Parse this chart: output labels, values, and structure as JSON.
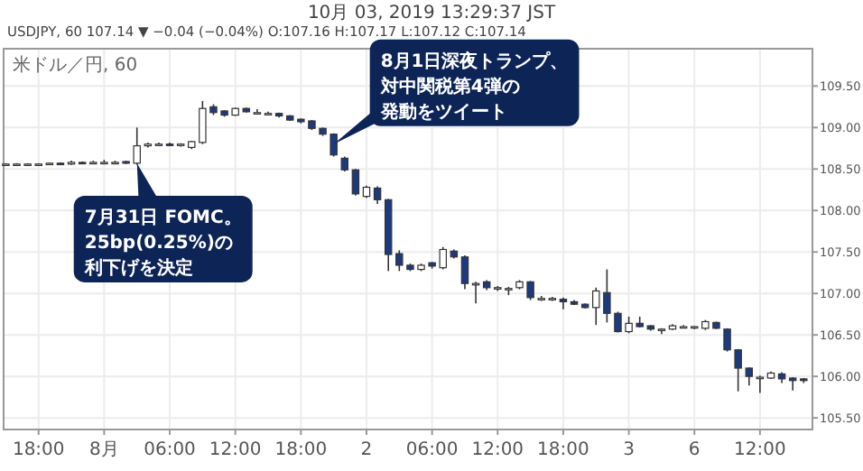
{
  "chart_data": {
    "type": "candlestick",
    "title": "10月 03, 2019 13:29:37 JST",
    "subtitle": "USDJPY, 60 107.14 ▼ −0.04 (−0.04%) O:107.16 H:107.17 L:107.12 C:107.14",
    "legend_title": "米ドル／円, 60",
    "x": [
      "2019-07-31T15:00",
      "2019-07-31T16:00",
      "2019-07-31T17:00",
      "2019-07-31T18:00",
      "2019-07-31T19:00",
      "2019-07-31T20:00",
      "2019-07-31T21:00",
      "2019-07-31T22:00",
      "2019-07-31T23:00",
      "2019-08-01T00:00",
      "2019-08-01T01:00",
      "2019-08-01T02:00",
      "2019-08-01T03:00",
      "2019-08-01T04:00",
      "2019-08-01T05:00",
      "2019-08-01T06:00",
      "2019-08-01T07:00",
      "2019-08-01T08:00",
      "2019-08-01T09:00",
      "2019-08-01T10:00",
      "2019-08-01T11:00",
      "2019-08-01T12:00",
      "2019-08-01T13:00",
      "2019-08-01T14:00",
      "2019-08-01T15:00",
      "2019-08-01T16:00",
      "2019-08-01T17:00",
      "2019-08-01T18:00",
      "2019-08-01T19:00",
      "2019-08-01T20:00",
      "2019-08-01T21:00",
      "2019-08-01T22:00",
      "2019-08-01T23:00",
      "2019-08-02T00:00",
      "2019-08-02T01:00",
      "2019-08-02T02:00",
      "2019-08-02T03:00",
      "2019-08-02T04:00",
      "2019-08-02T05:00",
      "2019-08-02T06:00",
      "2019-08-02T07:00",
      "2019-08-02T08:00",
      "2019-08-02T09:00",
      "2019-08-02T10:00",
      "2019-08-02T11:00",
      "2019-08-02T12:00",
      "2019-08-02T13:00",
      "2019-08-02T14:00",
      "2019-08-02T15:00",
      "2019-08-02T16:00",
      "2019-08-02T17:00",
      "2019-08-02T18:00",
      "2019-08-02T19:00",
      "2019-08-02T20:00",
      "2019-08-02T21:00",
      "2019-08-02T22:00",
      "2019-08-02T23:00",
      "2019-08-03T00:00",
      "2019-08-03T01:00",
      "2019-08-03T02:00",
      "2019-08-03T03:00",
      "2019-08-03T04:00",
      "2019-08-03T05:00",
      "2019-08-03T06:00",
      "2019-08-03T07:00",
      "2019-08-03T08:00",
      "2019-08-03T09:00",
      "2019-08-03T10:00",
      "2019-08-03T11:00",
      "2019-08-03T12:00",
      "2019-08-03T13:00",
      "2019-08-03T14:00",
      "2019-08-03T15:00",
      "2019-08-03T16:00"
    ],
    "ohlc": [
      [
        108.56,
        108.57,
        108.55,
        108.56
      ],
      [
        108.56,
        108.57,
        108.55,
        108.56
      ],
      [
        108.56,
        108.57,
        108.55,
        108.56
      ],
      [
        108.56,
        108.57,
        108.55,
        108.56
      ],
      [
        108.56,
        108.58,
        108.55,
        108.57
      ],
      [
        108.57,
        108.58,
        108.56,
        108.56
      ],
      [
        108.56,
        108.6,
        108.55,
        108.58
      ],
      [
        108.58,
        108.59,
        108.56,
        108.57
      ],
      [
        108.57,
        108.6,
        108.56,
        108.58
      ],
      [
        108.58,
        108.61,
        108.57,
        108.58
      ],
      [
        108.58,
        108.6,
        108.56,
        108.58
      ],
      [
        108.59,
        108.6,
        108.56,
        108.57
      ],
      [
        108.57,
        109.0,
        108.55,
        108.78
      ],
      [
        108.78,
        108.82,
        108.76,
        108.8
      ],
      [
        108.8,
        108.82,
        108.78,
        108.8
      ],
      [
        108.8,
        108.82,
        108.78,
        108.79
      ],
      [
        108.79,
        108.81,
        108.77,
        108.8
      ],
      [
        108.76,
        108.84,
        108.74,
        108.83
      ],
      [
        108.82,
        109.32,
        108.8,
        109.23
      ],
      [
        109.25,
        109.28,
        109.15,
        109.18
      ],
      [
        109.2,
        109.21,
        109.13,
        109.15
      ],
      [
        109.15,
        109.24,
        109.14,
        109.23
      ],
      [
        109.23,
        109.24,
        109.18,
        109.19
      ],
      [
        109.18,
        109.22,
        109.16,
        109.18
      ],
      [
        109.17,
        109.19,
        109.15,
        109.17
      ],
      [
        109.17,
        109.18,
        109.12,
        109.14
      ],
      [
        109.14,
        109.15,
        109.08,
        109.09
      ],
      [
        109.1,
        109.11,
        109.05,
        109.07
      ],
      [
        109.08,
        109.09,
        108.97,
        108.99
      ],
      [
        108.99,
        109.0,
        108.9,
        108.92
      ],
      [
        108.92,
        108.93,
        108.65,
        108.67
      ],
      [
        108.63,
        108.65,
        108.47,
        108.49
      ],
      [
        108.49,
        108.5,
        108.18,
        108.2
      ],
      [
        108.17,
        108.3,
        108.15,
        108.28
      ],
      [
        108.27,
        108.29,
        108.08,
        108.13
      ],
      [
        108.13,
        108.14,
        107.27,
        107.47
      ],
      [
        107.48,
        107.52,
        107.27,
        107.34
      ],
      [
        107.34,
        107.36,
        107.27,
        107.29
      ],
      [
        107.29,
        107.36,
        107.27,
        107.34
      ],
      [
        107.37,
        107.38,
        107.3,
        107.33
      ],
      [
        107.31,
        107.56,
        107.29,
        107.53
      ],
      [
        107.51,
        107.53,
        107.42,
        107.44
      ],
      [
        107.44,
        107.46,
        107.05,
        107.12
      ],
      [
        107.12,
        107.14,
        106.88,
        107.12
      ],
      [
        107.14,
        107.16,
        107.04,
        107.07
      ],
      [
        107.07,
        107.09,
        107.03,
        107.07
      ],
      [
        107.06,
        107.08,
        106.98,
        107.06
      ],
      [
        107.07,
        107.16,
        107.05,
        107.14
      ],
      [
        107.14,
        107.15,
        106.92,
        106.95
      ],
      [
        106.94,
        106.97,
        106.91,
        106.94
      ],
      [
        106.94,
        106.96,
        106.91,
        106.94
      ],
      [
        106.93,
        106.95,
        106.81,
        106.9
      ],
      [
        106.9,
        106.92,
        106.86,
        106.87
      ],
      [
        106.87,
        106.88,
        106.82,
        106.83
      ],
      [
        106.83,
        107.07,
        106.62,
        107.03
      ],
      [
        107.01,
        107.29,
        106.65,
        106.76
      ],
      [
        106.76,
        106.78,
        106.53,
        106.54
      ],
      [
        106.54,
        106.72,
        106.52,
        106.64
      ],
      [
        106.64,
        106.72,
        106.59,
        106.6
      ],
      [
        106.61,
        106.62,
        106.55,
        106.57
      ],
      [
        106.57,
        106.58,
        106.51,
        106.57
      ],
      [
        106.57,
        106.63,
        106.56,
        106.61
      ],
      [
        106.6,
        106.62,
        106.58,
        106.6
      ],
      [
        106.6,
        106.61,
        106.57,
        106.6
      ],
      [
        106.58,
        106.68,
        106.56,
        106.66
      ],
      [
        106.65,
        106.66,
        106.57,
        106.58
      ],
      [
        106.57,
        106.58,
        106.3,
        106.32
      ],
      [
        106.32,
        106.33,
        105.82,
        106.1
      ],
      [
        106.1,
        106.11,
        105.89,
        106.0
      ],
      [
        105.99,
        106.01,
        105.8,
        105.99
      ],
      [
        105.98,
        106.06,
        105.97,
        106.04
      ],
      [
        106.03,
        106.05,
        105.92,
        105.97
      ],
      [
        105.98,
        105.99,
        105.83,
        105.95
      ],
      [
        105.97,
        105.98,
        105.92,
        105.95
      ]
    ],
    "xlim": [
      "2019-07-31T14:48",
      "2019-08-03T16:48"
    ],
    "ylim": [
      105.36,
      109.95
    ],
    "xticks": [
      {
        "value": "2019-07-31T18:00",
        "label": "18:00"
      },
      {
        "value": "2019-08-01T00:00",
        "label": "8月"
      },
      {
        "value": "2019-08-01T06:00",
        "label": "06:00"
      },
      {
        "value": "2019-08-01T12:00",
        "label": "12:00"
      },
      {
        "value": "2019-08-01T18:00",
        "label": "18:00"
      },
      {
        "value": "2019-08-02T00:00",
        "label": "2"
      },
      {
        "value": "2019-08-02T06:00",
        "label": "06:00"
      },
      {
        "value": "2019-08-02T12:00",
        "label": "12:00"
      },
      {
        "value": "2019-08-02T18:00",
        "label": "18:00"
      },
      {
        "value": "2019-08-03T00:00",
        "label": "3"
      },
      {
        "value": "2019-08-03T06:00",
        "label": "6"
      },
      {
        "value": "2019-08-03T12:00",
        "label": "12:00"
      }
    ],
    "yticks": [
      {
        "value": 105.5,
        "label": "105.50"
      },
      {
        "value": 106,
        "label": "106.00"
      },
      {
        "value": 106.5,
        "label": "106.50"
      },
      {
        "value": 107,
        "label": "107.00"
      },
      {
        "value": 107.5,
        "label": "107.50"
      },
      {
        "value": 108,
        "label": "108.00"
      },
      {
        "value": 108.5,
        "label": "108.50"
      },
      {
        "value": 109,
        "label": "109.00"
      },
      {
        "value": 109.5,
        "label": "109.50"
      }
    ],
    "grid": true,
    "annotations": [
      {
        "text": "7月31日 FOMC。25bp(0.25%)の利下げを決定",
        "x": "2019-08-01T03:00",
        "y": 108.57
      },
      {
        "text": "8月1日深夜トランプ、対中関税第4弾の発動をツイート",
        "x": "2019-08-01T21:00",
        "y": 108.8
      }
    ]
  }
}
